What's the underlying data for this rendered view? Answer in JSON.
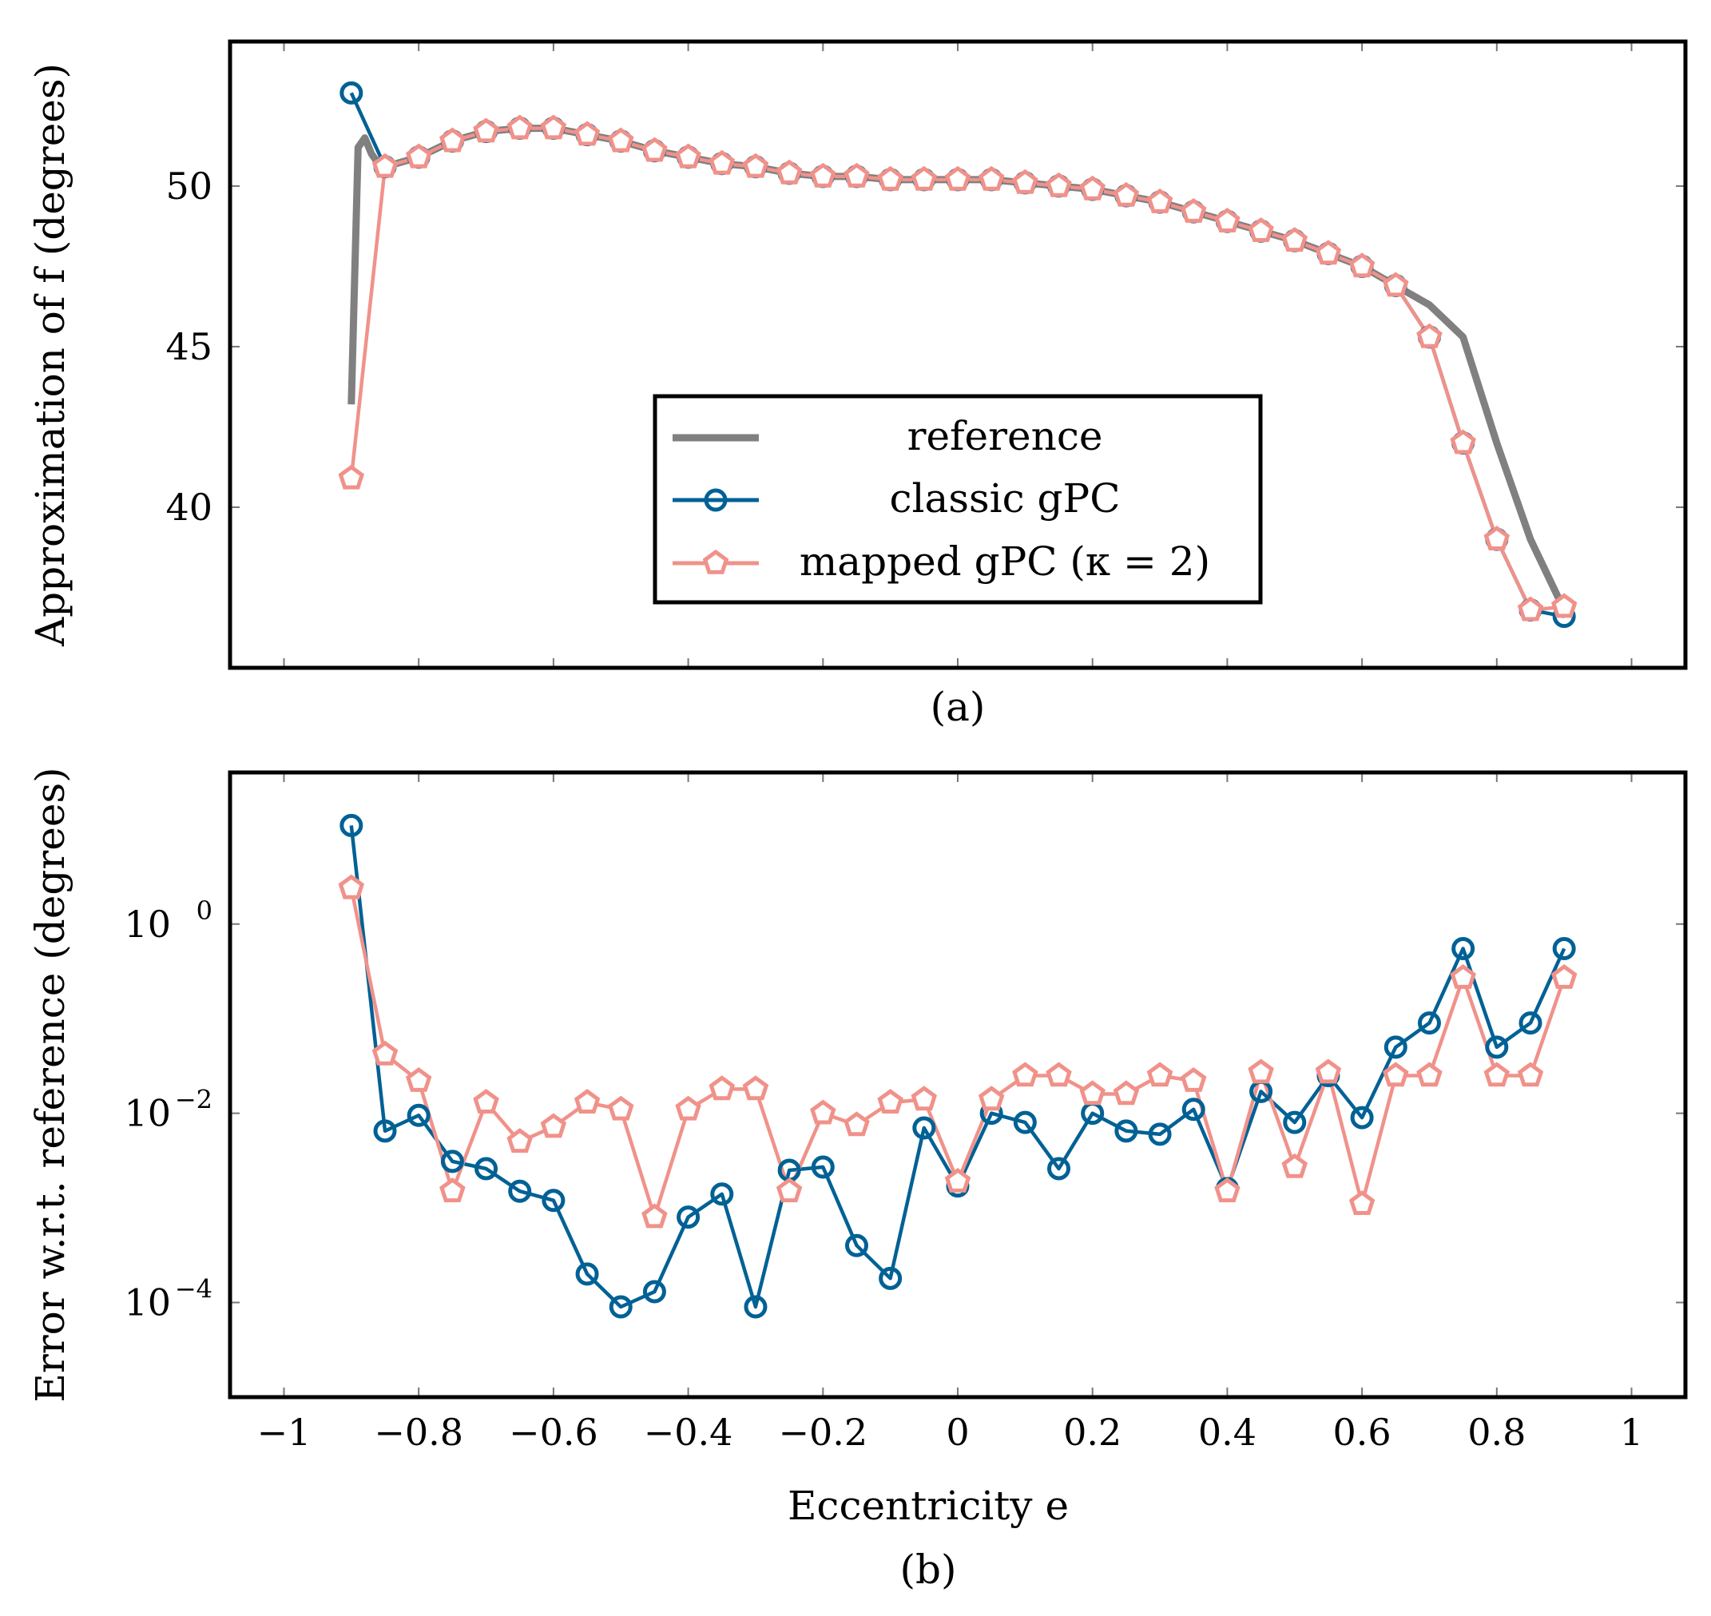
{
  "chart_data": [
    {
      "type": "line",
      "panel_label": "(a)",
      "ylabel": "Approximation of f (degrees)",
      "xlabel": "",
      "xlim": [
        -1.08,
        1.08
      ],
      "ylim": [
        35,
        54.5
      ],
      "yscale": "linear",
      "xticks": [
        -1,
        -0.8,
        -0.6,
        -0.4,
        -0.2,
        0,
        0.2,
        0.4,
        0.6,
        0.8,
        1
      ],
      "yticks": [
        40,
        45,
        50
      ],
      "ytick_labels": [
        "40",
        "45",
        "50"
      ],
      "legend": {
        "position": "center-bottom",
        "entries": [
          "reference",
          "classic gPC",
          "mapped gPC (κ = 2)"
        ]
      },
      "series": [
        {
          "name": "reference",
          "color": "#808080",
          "marker": "none",
          "x": [
            -0.9,
            -0.89,
            -0.88,
            -0.87,
            -0.86,
            -0.85,
            -0.8,
            -0.75,
            -0.7,
            -0.65,
            -0.6,
            -0.55,
            -0.5,
            -0.45,
            -0.4,
            -0.35,
            -0.3,
            -0.25,
            -0.2,
            -0.15,
            -0.1,
            -0.05,
            0,
            0.05,
            0.1,
            0.15,
            0.2,
            0.25,
            0.3,
            0.35,
            0.4,
            0.45,
            0.5,
            0.55,
            0.6,
            0.65,
            0.7,
            0.75,
            0.8,
            0.85,
            0.9
          ],
          "y": [
            43.2,
            51.2,
            51.5,
            51.0,
            50.7,
            50.6,
            50.9,
            51.4,
            51.7,
            51.8,
            51.8,
            51.6,
            51.4,
            51.1,
            50.9,
            50.7,
            50.6,
            50.4,
            50.3,
            50.3,
            50.2,
            50.2,
            50.2,
            50.2,
            50.1,
            50.0,
            49.9,
            49.7,
            49.5,
            49.2,
            48.9,
            48.6,
            48.3,
            47.9,
            47.5,
            46.9,
            46.3,
            45.3,
            42.0,
            39.0,
            36.8
          ]
        },
        {
          "name": "classic gPC",
          "color": "#006195",
          "marker": "circle",
          "x": [
            -0.9,
            -0.85,
            -0.8,
            -0.75,
            -0.7,
            -0.65,
            -0.6,
            -0.55,
            -0.5,
            -0.45,
            -0.4,
            -0.35,
            -0.3,
            -0.25,
            -0.2,
            -0.15,
            -0.1,
            -0.05,
            0,
            0.05,
            0.1,
            0.15,
            0.2,
            0.25,
            0.3,
            0.35,
            0.4,
            0.45,
            0.5,
            0.55,
            0.6,
            0.65,
            0.7,
            0.75,
            0.8,
            0.85,
            0.9
          ],
          "y": [
            52.9,
            50.6,
            50.9,
            51.4,
            51.7,
            51.8,
            51.8,
            51.6,
            51.4,
            51.1,
            50.9,
            50.7,
            50.6,
            50.4,
            50.3,
            50.3,
            50.2,
            50.2,
            50.2,
            50.2,
            50.1,
            50.0,
            49.9,
            49.7,
            49.5,
            49.2,
            48.9,
            48.6,
            48.3,
            47.9,
            47.5,
            46.9,
            45.3,
            42.0,
            39.0,
            36.8,
            36.6
          ]
        },
        {
          "name": "mapped gPC (κ = 2)",
          "color": "#f0928a",
          "marker": "pentagon",
          "x": [
            -0.9,
            -0.85,
            -0.8,
            -0.75,
            -0.7,
            -0.65,
            -0.6,
            -0.55,
            -0.5,
            -0.45,
            -0.4,
            -0.35,
            -0.3,
            -0.25,
            -0.2,
            -0.15,
            -0.1,
            -0.05,
            0,
            0.05,
            0.1,
            0.15,
            0.2,
            0.25,
            0.3,
            0.35,
            0.4,
            0.45,
            0.5,
            0.55,
            0.6,
            0.65,
            0.7,
            0.75,
            0.8,
            0.85,
            0.9
          ],
          "y": [
            40.9,
            50.6,
            50.9,
            51.4,
            51.7,
            51.8,
            51.8,
            51.6,
            51.4,
            51.1,
            50.9,
            50.7,
            50.6,
            50.4,
            50.3,
            50.3,
            50.2,
            50.2,
            50.2,
            50.2,
            50.1,
            50.0,
            49.9,
            49.7,
            49.5,
            49.2,
            48.9,
            48.6,
            48.3,
            47.9,
            47.5,
            46.9,
            45.3,
            42.0,
            39.0,
            36.8,
            36.9
          ]
        }
      ]
    },
    {
      "type": "line",
      "panel_label": "(b)",
      "ylabel": "Error w.r.t. reference (degrees)",
      "xlabel": "Eccentricity e",
      "xlim": [
        -1.08,
        1.08
      ],
      "ylim": [
        1e-05,
        40
      ],
      "yscale": "log",
      "xticks": [
        -1,
        -0.8,
        -0.6,
        -0.4,
        -0.2,
        0,
        0.2,
        0.4,
        0.6,
        0.8,
        1
      ],
      "xtick_labels": [
        "−1",
        "−0.8",
        "−0.6",
        "−0.4",
        "−0.2",
        "0",
        "0.2",
        "0.4",
        "0.6",
        "0.8",
        "1"
      ],
      "yticks": [
        0.0001,
        0.01,
        1
      ],
      "ytick_labels": [
        "10",
        "10",
        "10"
      ],
      "ytick_exponents": [
        "−4",
        "−2",
        "0"
      ],
      "series": [
        {
          "name": "classic gPC",
          "color": "#006195",
          "marker": "circle",
          "x": [
            -0.9,
            -0.85,
            -0.8,
            -0.75,
            -0.7,
            -0.65,
            -0.6,
            -0.55,
            -0.5,
            -0.45,
            -0.4,
            -0.35,
            -0.3,
            -0.25,
            -0.2,
            -0.15,
            -0.1,
            -0.05,
            0,
            0.05,
            0.1,
            0.15,
            0.2,
            0.25,
            0.3,
            0.35,
            0.4,
            0.45,
            0.5,
            0.55,
            0.6,
            0.65,
            0.7,
            0.75,
            0.8,
            0.85,
            0.9
          ],
          "y": [
            11,
            0.0065,
            0.0095,
            0.0031,
            0.0026,
            0.0015,
            0.0012,
            0.0002,
            9e-05,
            0.00013,
            0.0008,
            0.0014,
            9e-05,
            0.0025,
            0.0027,
            0.0004,
            0.00018,
            0.007,
            0.0017,
            0.01,
            0.008,
            0.0026,
            0.01,
            0.0065,
            0.006,
            0.011,
            0.0016,
            0.017,
            0.008,
            0.025,
            0.009,
            0.05,
            0.09,
            0.55,
            0.05,
            0.09,
            0.55
          ]
        },
        {
          "name": "mapped gPC (κ = 2)",
          "color": "#f0928a",
          "marker": "pentagon",
          "x": [
            -0.9,
            -0.85,
            -0.8,
            -0.75,
            -0.7,
            -0.65,
            -0.6,
            -0.55,
            -0.5,
            -0.45,
            -0.4,
            -0.35,
            -0.3,
            -0.25,
            -0.2,
            -0.15,
            -0.1,
            -0.05,
            0,
            0.05,
            0.1,
            0.15,
            0.2,
            0.25,
            0.3,
            0.35,
            0.4,
            0.45,
            0.5,
            0.55,
            0.6,
            0.65,
            0.7,
            0.75,
            0.8,
            0.85,
            0.9
          ],
          "y": [
            2.4,
            0.042,
            0.022,
            0.0015,
            0.013,
            0.005,
            0.0072,
            0.013,
            0.011,
            0.0008,
            0.011,
            0.018,
            0.018,
            0.0015,
            0.01,
            0.0075,
            0.013,
            0.014,
            0.0019,
            0.014,
            0.025,
            0.025,
            0.016,
            0.016,
            0.025,
            0.022,
            0.0015,
            0.027,
            0.0027,
            0.027,
            0.0011,
            0.025,
            0.025,
            0.27,
            0.025,
            0.025,
            0.27
          ]
        }
      ]
    }
  ]
}
